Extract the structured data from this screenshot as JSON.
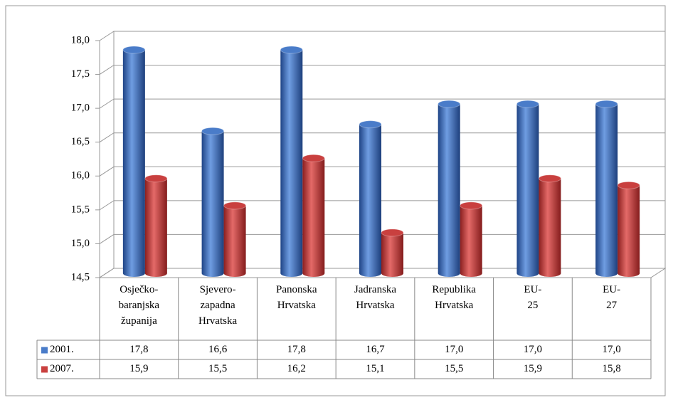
{
  "chart_data": {
    "type": "bar3d",
    "categories": [
      "Osječko-baranjska županija",
      "Sjevero-zapadna Hrvatska",
      "Panonska Hrvatska",
      "Jadranska Hrvatska",
      "Republika Hrvatska",
      "EU-25",
      "EU-27"
    ],
    "series": [
      {
        "name": "2001.",
        "color": "#4a7cc9",
        "values": [
          17.8,
          16.6,
          17.8,
          16.7,
          17.0,
          17.0,
          17.0
        ],
        "value_labels": [
          "17,8",
          "16,6",
          "17,8",
          "16,7",
          "17,0",
          "17,0",
          "17,0"
        ]
      },
      {
        "name": "2007.",
        "color": "#c9403f",
        "values": [
          15.9,
          15.5,
          16.2,
          15.1,
          15.5,
          15.9,
          15.8
        ],
        "value_labels": [
          "15,9",
          "15,5",
          "16,2",
          "15,1",
          "15,5",
          "15,9",
          "15,8"
        ]
      }
    ],
    "ylim": [
      14.5,
      18
    ],
    "yticks": [
      {
        "value": 14.5,
        "label": "14,5"
      },
      {
        "value": 15,
        "label": "15,0"
      },
      {
        "value": 15.5,
        "label": "15,5"
      },
      {
        "value": 16,
        "label": "16,0"
      },
      {
        "value": 16.5,
        "label": "16,5"
      },
      {
        "value": 17,
        "label": "17,0"
      },
      {
        "value": 17.5,
        "label": "17,5"
      },
      {
        "value": 18,
        "label": "18,0"
      }
    ],
    "grid": true,
    "legend": "table"
  }
}
